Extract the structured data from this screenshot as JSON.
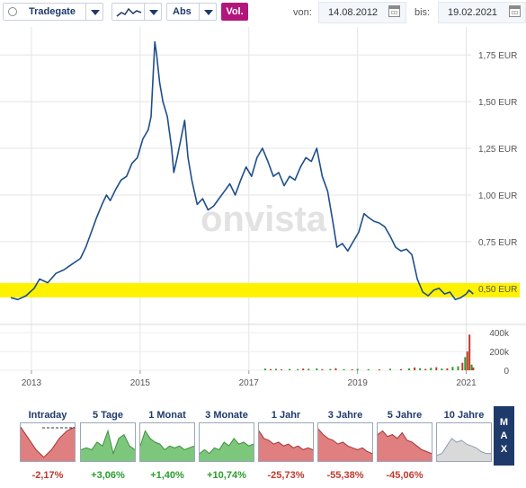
{
  "toolbar": {
    "exchange": "Tradegate",
    "type_label": "Abs",
    "vol_label": "Vol.",
    "from_label": "von:",
    "from_date": "14.08.2012",
    "to_label": "bis:",
    "to_date": "19.02.2021"
  },
  "watermark": "onvista",
  "colors": {
    "line": "#1f4e8c",
    "highlight": "#fff200",
    "up": "#2a9d2a",
    "down": "#c0392b",
    "accent": "#b3167b",
    "nav": "#1e3a6b"
  },
  "chart_data": {
    "type": "line",
    "x_ticks": [
      "2013",
      "2015",
      "2017",
      "2019",
      "2021"
    ],
    "y_ticks": [
      "0,50 EUR",
      "0,75 EUR",
      "1,00 EUR",
      "1,25 EUR",
      "1,50 EUR",
      "1,75 EUR"
    ],
    "ylim": [
      0.35,
      1.9
    ],
    "highlight_level": 0.49,
    "series": [
      {
        "points": [
          [
            2012.62,
            0.45
          ],
          [
            2012.75,
            0.44
          ],
          [
            2012.9,
            0.46
          ],
          [
            2013.05,
            0.5
          ],
          [
            2013.15,
            0.55
          ],
          [
            2013.3,
            0.53
          ],
          [
            2013.45,
            0.58
          ],
          [
            2013.6,
            0.6
          ],
          [
            2013.75,
            0.63
          ],
          [
            2013.9,
            0.66
          ],
          [
            2014.0,
            0.72
          ],
          [
            2014.1,
            0.8
          ],
          [
            2014.2,
            0.88
          ],
          [
            2014.3,
            0.95
          ],
          [
            2014.38,
            1.0
          ],
          [
            2014.45,
            0.97
          ],
          [
            2014.55,
            1.03
          ],
          [
            2014.65,
            1.08
          ],
          [
            2014.75,
            1.1
          ],
          [
            2014.85,
            1.17
          ],
          [
            2014.95,
            1.2
          ],
          [
            2015.05,
            1.3
          ],
          [
            2015.15,
            1.35
          ],
          [
            2015.2,
            1.42
          ],
          [
            2015.27,
            1.82
          ],
          [
            2015.3,
            1.76
          ],
          [
            2015.36,
            1.6
          ],
          [
            2015.42,
            1.5
          ],
          [
            2015.5,
            1.42
          ],
          [
            2015.58,
            1.25
          ],
          [
            2015.62,
            1.12
          ],
          [
            2015.68,
            1.2
          ],
          [
            2015.75,
            1.3
          ],
          [
            2015.82,
            1.4
          ],
          [
            2015.88,
            1.2
          ],
          [
            2015.95,
            1.08
          ],
          [
            2016.05,
            0.95
          ],
          [
            2016.15,
            0.98
          ],
          [
            2016.25,
            0.92
          ],
          [
            2016.35,
            0.94
          ],
          [
            2016.45,
            0.98
          ],
          [
            2016.55,
            1.02
          ],
          [
            2016.65,
            1.06
          ],
          [
            2016.75,
            1.0
          ],
          [
            2016.85,
            1.08
          ],
          [
            2016.95,
            1.15
          ],
          [
            2017.05,
            1.1
          ],
          [
            2017.15,
            1.2
          ],
          [
            2017.25,
            1.25
          ],
          [
            2017.35,
            1.18
          ],
          [
            2017.45,
            1.1
          ],
          [
            2017.55,
            1.12
          ],
          [
            2017.65,
            1.05
          ],
          [
            2017.75,
            1.1
          ],
          [
            2017.85,
            1.08
          ],
          [
            2017.95,
            1.15
          ],
          [
            2018.05,
            1.2
          ],
          [
            2018.15,
            1.18
          ],
          [
            2018.25,
            1.25
          ],
          [
            2018.35,
            1.1
          ],
          [
            2018.45,
            1.02
          ],
          [
            2018.55,
            0.85
          ],
          [
            2018.62,
            0.72
          ],
          [
            2018.72,
            0.74
          ],
          [
            2018.82,
            0.7
          ],
          [
            2018.92,
            0.75
          ],
          [
            2019.02,
            0.8
          ],
          [
            2019.12,
            0.9
          ],
          [
            2019.2,
            0.88
          ],
          [
            2019.3,
            0.86
          ],
          [
            2019.4,
            0.85
          ],
          [
            2019.5,
            0.83
          ],
          [
            2019.6,
            0.78
          ],
          [
            2019.7,
            0.72
          ],
          [
            2019.8,
            0.7
          ],
          [
            2019.9,
            0.71
          ],
          [
            2020.0,
            0.68
          ],
          [
            2020.1,
            0.55
          ],
          [
            2020.2,
            0.48
          ],
          [
            2020.3,
            0.46
          ],
          [
            2020.4,
            0.49
          ],
          [
            2020.5,
            0.5
          ],
          [
            2020.6,
            0.47
          ],
          [
            2020.7,
            0.48
          ],
          [
            2020.8,
            0.44
          ],
          [
            2020.9,
            0.45
          ],
          [
            2021.0,
            0.47
          ],
          [
            2021.05,
            0.49
          ],
          [
            2021.13,
            0.47
          ]
        ]
      }
    ],
    "volume": {
      "y_ticks": [
        "0",
        "200k",
        "400k"
      ],
      "ylim": [
        0,
        450000
      ],
      "bars": [
        [
          2017.3,
          18000,
          "up"
        ],
        [
          2017.4,
          12000,
          "down"
        ],
        [
          2017.5,
          15000,
          "up"
        ],
        [
          2017.6,
          10000,
          "down"
        ],
        [
          2017.75,
          14000,
          "up"
        ],
        [
          2017.9,
          12000,
          "up"
        ],
        [
          2018.0,
          18000,
          "down"
        ],
        [
          2018.1,
          16000,
          "up"
        ],
        [
          2018.25,
          20000,
          "up"
        ],
        [
          2018.35,
          12000,
          "down"
        ],
        [
          2018.5,
          14000,
          "up"
        ],
        [
          2018.6,
          22000,
          "down"
        ],
        [
          2018.75,
          12000,
          "up"
        ],
        [
          2018.9,
          10000,
          "down"
        ],
        [
          2019.0,
          14000,
          "up"
        ],
        [
          2019.2,
          12000,
          "up"
        ],
        [
          2019.4,
          10000,
          "down"
        ],
        [
          2019.6,
          16000,
          "up"
        ],
        [
          2019.8,
          12000,
          "down"
        ],
        [
          2019.95,
          20000,
          "up"
        ],
        [
          2020.05,
          30000,
          "down"
        ],
        [
          2020.15,
          22000,
          "up"
        ],
        [
          2020.25,
          14000,
          "down"
        ],
        [
          2020.35,
          26000,
          "up"
        ],
        [
          2020.45,
          32000,
          "down"
        ],
        [
          2020.55,
          18000,
          "up"
        ],
        [
          2020.65,
          20000,
          "down"
        ],
        [
          2020.75,
          36000,
          "up"
        ],
        [
          2020.85,
          42000,
          "up"
        ],
        [
          2020.93,
          80000,
          "down"
        ],
        [
          2020.98,
          140000,
          "up"
        ],
        [
          2021.02,
          200000,
          "down"
        ],
        [
          2021.06,
          380000,
          "down"
        ],
        [
          2021.1,
          60000,
          "up"
        ],
        [
          2021.13,
          30000,
          "down"
        ]
      ]
    }
  },
  "periods": [
    {
      "label": "Intraday",
      "change": "-2,17%",
      "trend": "down",
      "spark": [
        0.9,
        0.6,
        0.3,
        0.1,
        0.3,
        0.6,
        0.8,
        0.9
      ],
      "dashed": true
    },
    {
      "label": "5 Tage",
      "change": "+3,06%",
      "trend": "up",
      "spark": [
        0.3,
        0.35,
        0.3,
        0.5,
        0.4,
        0.8,
        0.2,
        0.6,
        0.7,
        0.4,
        0.3
      ]
    },
    {
      "label": "1 Monat",
      "change": "+1,40%",
      "trend": "up",
      "spark": [
        0.4,
        0.8,
        0.6,
        0.5,
        0.45,
        0.3,
        0.4,
        0.35,
        0.4,
        0.3,
        0.35,
        0.4
      ]
    },
    {
      "label": "3 Monate",
      "change": "+10,74%",
      "trend": "up",
      "spark": [
        0.2,
        0.3,
        0.2,
        0.35,
        0.3,
        0.5,
        0.4,
        0.6,
        0.45,
        0.5,
        0.4,
        0.45
      ]
    },
    {
      "label": "1 Jahr",
      "change": "-25,73%",
      "trend": "down",
      "spark": [
        0.8,
        0.6,
        0.55,
        0.45,
        0.5,
        0.4,
        0.45,
        0.35,
        0.4,
        0.3,
        0.35,
        0.3
      ]
    },
    {
      "label": "3 Jahre",
      "change": "-55,38%",
      "trend": "down",
      "spark": [
        0.85,
        0.7,
        0.6,
        0.55,
        0.45,
        0.5,
        0.4,
        0.35,
        0.3,
        0.35,
        0.25,
        0.2
      ]
    },
    {
      "label": "5 Jahre",
      "change": "-45,06%",
      "trend": "down",
      "spark": [
        0.7,
        0.8,
        0.65,
        0.7,
        0.6,
        0.75,
        0.55,
        0.5,
        0.4,
        0.3,
        0.25,
        0.2
      ]
    },
    {
      "label": "10 Jahre",
      "change": "",
      "trend": "neutral",
      "spark": [
        0.15,
        0.2,
        0.4,
        0.6,
        0.5,
        0.55,
        0.45,
        0.4,
        0.35,
        0.25,
        0.2,
        0.2
      ]
    }
  ],
  "max_label": [
    "M",
    "A",
    "X"
  ]
}
